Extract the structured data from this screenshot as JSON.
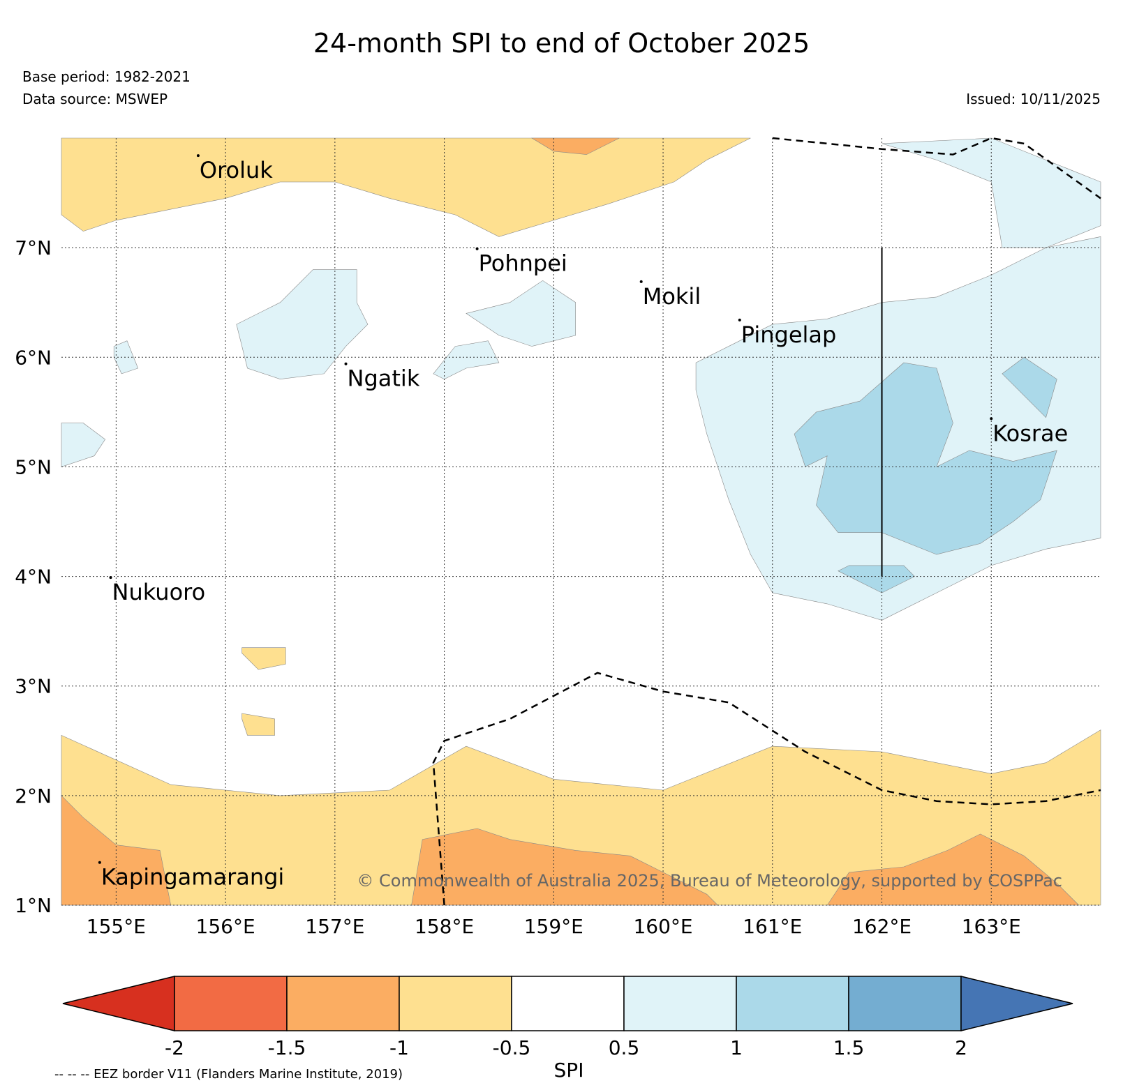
{
  "title": "24-month SPI to end of October 2025",
  "base_period": "Base period: 1982-2021",
  "data_source": "Data source: MSWEP",
  "issued": "Issued: 10/11/2025",
  "copyright": "© Commonwealth of Australia 2025, Bureau of Meteorology, supported by COSPPac",
  "footnote": "-- -- -- EEZ border V11 (Flanders Marine Institute, 2019)",
  "map": {
    "lon_range": [
      154.5,
      164.0
    ],
    "lat_range": [
      1.0,
      8.0
    ],
    "lon_ticks": [
      {
        "value": 155,
        "label": "155°E"
      },
      {
        "value": 156,
        "label": "156°E"
      },
      {
        "value": 157,
        "label": "157°E"
      },
      {
        "value": 158,
        "label": "158°E"
      },
      {
        "value": 159,
        "label": "159°E"
      },
      {
        "value": 160,
        "label": "160°E"
      },
      {
        "value": 161,
        "label": "161°E"
      },
      {
        "value": 162,
        "label": "162°E"
      },
      {
        "value": 163,
        "label": "163°E"
      }
    ],
    "lat_ticks": [
      {
        "value": 1,
        "label": "1°N"
      },
      {
        "value": 2,
        "label": "2°N"
      },
      {
        "value": 3,
        "label": "3°N"
      },
      {
        "value": 4,
        "label": "4°N"
      },
      {
        "value": 5,
        "label": "5°N"
      },
      {
        "value": 6,
        "label": "6°N"
      },
      {
        "value": 7,
        "label": "7°N"
      }
    ],
    "places": [
      {
        "name": "Oroluk",
        "lon": 155.75,
        "lat": 7.7
      },
      {
        "name": "Pohnpei",
        "lon": 158.3,
        "lat": 6.85
      },
      {
        "name": "Mokil",
        "lon": 159.8,
        "lat": 6.55
      },
      {
        "name": "Pingelap",
        "lon": 160.7,
        "lat": 6.2
      },
      {
        "name": "Ngatik",
        "lon": 157.1,
        "lat": 5.8
      },
      {
        "name": "Kosrae",
        "lon": 163.0,
        "lat": 5.3
      },
      {
        "name": "Nukuoro",
        "lon": 154.95,
        "lat": 3.85
      },
      {
        "name": "Kapingamarangi",
        "lon": 154.85,
        "lat": 1.25
      }
    ],
    "eez_south": [
      [
        158.0,
        1.0
      ],
      [
        157.9,
        2.3
      ],
      [
        158.0,
        2.5
      ],
      [
        158.6,
        2.7
      ],
      [
        159.4,
        3.12
      ],
      [
        160.0,
        2.95
      ],
      [
        160.6,
        2.85
      ],
      [
        161.3,
        2.4
      ],
      [
        162.0,
        2.05
      ],
      [
        162.5,
        1.95
      ],
      [
        163.0,
        1.92
      ],
      [
        163.5,
        1.95
      ],
      [
        164.0,
        2.05
      ]
    ],
    "eez_north": [
      [
        161.0,
        8.0
      ],
      [
        162.0,
        7.9
      ],
      [
        162.65,
        7.85
      ],
      [
        163.0,
        8.0
      ],
      [
        163.3,
        7.95
      ],
      [
        164.0,
        7.45
      ]
    ],
    "boundary_line": [
      [
        162.0,
        7.0
      ],
      [
        162.0,
        4.0
      ]
    ],
    "colors": {
      "lt_neg2": "#d7301f",
      "neg2_neg15": "#f26b44",
      "neg15_neg1": "#fbad62",
      "neg1_neg05": "#fee090",
      "neutral": "#ffffff",
      "p05_1": "#e0f3f8",
      "p1_15": "#abd9e9",
      "p15_2": "#74add1",
      "gt2": "#4575b4"
    },
    "regions": [
      {
        "color": "neg1_neg05",
        "coords": [
          [
            154.5,
            8.0
          ],
          [
            160.8,
            8.0
          ],
          [
            160.4,
            7.8
          ],
          [
            160.1,
            7.6
          ],
          [
            159.5,
            7.4
          ],
          [
            159.0,
            7.25
          ],
          [
            158.5,
            7.1
          ],
          [
            158.1,
            7.3
          ],
          [
            157.5,
            7.45
          ],
          [
            157.0,
            7.6
          ],
          [
            156.5,
            7.6
          ],
          [
            156.0,
            7.45
          ],
          [
            155.5,
            7.35
          ],
          [
            155.0,
            7.25
          ],
          [
            154.7,
            7.15
          ],
          [
            154.5,
            7.3
          ]
        ]
      },
      {
        "color": "neg15_neg1",
        "coords": [
          [
            158.8,
            8.0
          ],
          [
            159.6,
            8.0
          ],
          [
            159.3,
            7.85
          ],
          [
            159.0,
            7.88
          ]
        ]
      },
      {
        "color": "neg1_neg05",
        "coords": [
          [
            154.5,
            2.55
          ],
          [
            155.5,
            2.1
          ],
          [
            156.5,
            2.0
          ],
          [
            157.5,
            2.05
          ],
          [
            158.2,
            2.45
          ],
          [
            159.0,
            2.15
          ],
          [
            160.0,
            2.05
          ],
          [
            161.0,
            2.45
          ],
          [
            162.0,
            2.4
          ],
          [
            163.0,
            2.2
          ],
          [
            163.5,
            2.3
          ],
          [
            164.0,
            2.6
          ],
          [
            164.0,
            1.0
          ],
          [
            154.5,
            1.0
          ]
        ]
      },
      {
        "color": "neg15_neg1",
        "coords": [
          [
            154.5,
            2.0
          ],
          [
            154.7,
            1.8
          ],
          [
            155.0,
            1.55
          ],
          [
            155.4,
            1.5
          ],
          [
            155.5,
            1.0
          ],
          [
            154.5,
            1.0
          ]
        ]
      },
      {
        "color": "neg15_neg1",
        "coords": [
          [
            157.7,
            1.0
          ],
          [
            157.8,
            1.6
          ],
          [
            158.3,
            1.7
          ],
          [
            158.6,
            1.6
          ],
          [
            159.2,
            1.5
          ],
          [
            159.7,
            1.45
          ],
          [
            160.0,
            1.3
          ],
          [
            160.4,
            1.1
          ],
          [
            160.5,
            1.0
          ]
        ]
      },
      {
        "color": "neg15_neg1",
        "coords": [
          [
            161.5,
            1.0
          ],
          [
            161.7,
            1.3
          ],
          [
            162.2,
            1.35
          ],
          [
            162.6,
            1.5
          ],
          [
            162.9,
            1.65
          ],
          [
            163.3,
            1.45
          ],
          [
            163.6,
            1.2
          ],
          [
            163.8,
            1.0
          ]
        ]
      },
      {
        "color": "neg1_neg05",
        "coords": [
          [
            156.15,
            3.35
          ],
          [
            156.55,
            3.35
          ],
          [
            156.55,
            3.2
          ],
          [
            156.3,
            3.15
          ],
          [
            156.15,
            3.3
          ]
        ]
      },
      {
        "color": "neg1_neg05",
        "coords": [
          [
            156.15,
            2.75
          ],
          [
            156.45,
            2.7
          ],
          [
            156.45,
            2.55
          ],
          [
            156.2,
            2.55
          ],
          [
            156.15,
            2.7
          ]
        ]
      },
      {
        "color": "p05_1",
        "coords": [
          [
            160.3,
            5.95
          ],
          [
            160.7,
            6.15
          ],
          [
            161.0,
            6.3
          ],
          [
            161.5,
            6.35
          ],
          [
            162.0,
            6.5
          ],
          [
            162.5,
            6.55
          ],
          [
            163.0,
            6.75
          ],
          [
            163.5,
            7.0
          ],
          [
            164.0,
            7.1
          ],
          [
            164.0,
            4.35
          ],
          [
            163.5,
            4.25
          ],
          [
            163.0,
            4.1
          ],
          [
            162.5,
            3.85
          ],
          [
            162.0,
            3.6
          ],
          [
            161.5,
            3.75
          ],
          [
            161.0,
            3.85
          ],
          [
            160.8,
            4.2
          ],
          [
            160.6,
            4.7
          ],
          [
            160.4,
            5.3
          ],
          [
            160.3,
            5.7
          ]
        ]
      },
      {
        "color": "p05_1",
        "coords": [
          [
            162.0,
            7.95
          ],
          [
            163.0,
            8.0
          ],
          [
            164.0,
            7.6
          ],
          [
            164.0,
            7.2
          ],
          [
            163.5,
            7.0
          ],
          [
            163.1,
            7.0
          ],
          [
            163.0,
            7.6
          ],
          [
            162.5,
            7.8
          ]
        ]
      },
      {
        "color": "p1_15",
        "coords": [
          [
            161.2,
            5.3
          ],
          [
            161.4,
            5.5
          ],
          [
            161.8,
            5.6
          ],
          [
            162.2,
            5.95
          ],
          [
            162.5,
            5.9
          ],
          [
            162.65,
            5.4
          ],
          [
            162.5,
            5.0
          ],
          [
            162.8,
            5.15
          ],
          [
            163.2,
            5.05
          ],
          [
            163.6,
            5.15
          ],
          [
            163.45,
            4.7
          ],
          [
            163.2,
            4.5
          ],
          [
            162.9,
            4.3
          ],
          [
            162.5,
            4.2
          ],
          [
            162.0,
            4.4
          ],
          [
            161.6,
            4.4
          ],
          [
            161.4,
            4.65
          ],
          [
            161.5,
            5.1
          ],
          [
            161.3,
            5.0
          ]
        ]
      },
      {
        "color": "p1_15",
        "coords": [
          [
            163.1,
            5.85
          ],
          [
            163.3,
            6.0
          ],
          [
            163.6,
            5.8
          ],
          [
            163.5,
            5.45
          ],
          [
            163.2,
            5.75
          ]
        ]
      },
      {
        "color": "p1_15",
        "coords": [
          [
            161.6,
            4.05
          ],
          [
            162.0,
            3.85
          ],
          [
            162.3,
            4.0
          ],
          [
            162.2,
            4.1
          ],
          [
            161.7,
            4.1
          ]
        ]
      },
      {
        "color": "p05_1",
        "coords": [
          [
            156.1,
            6.3
          ],
          [
            156.5,
            6.5
          ],
          [
            156.8,
            6.8
          ],
          [
            157.2,
            6.8
          ],
          [
            157.2,
            6.5
          ],
          [
            157.3,
            6.3
          ],
          [
            157.1,
            6.1
          ],
          [
            156.9,
            5.85
          ],
          [
            156.5,
            5.8
          ],
          [
            156.2,
            5.9
          ]
        ]
      },
      {
        "color": "p05_1",
        "coords": [
          [
            158.2,
            6.4
          ],
          [
            158.6,
            6.5
          ],
          [
            158.9,
            6.7
          ],
          [
            159.2,
            6.5
          ],
          [
            159.2,
            6.2
          ],
          [
            158.8,
            6.1
          ],
          [
            158.5,
            6.2
          ]
        ]
      },
      {
        "color": "p05_1",
        "coords": [
          [
            157.9,
            5.85
          ],
          [
            158.1,
            6.1
          ],
          [
            158.4,
            6.15
          ],
          [
            158.5,
            5.95
          ],
          [
            158.2,
            5.9
          ],
          [
            158.0,
            5.8
          ]
        ]
      },
      {
        "color": "p05_1",
        "coords": [
          [
            154.5,
            5.4
          ],
          [
            154.7,
            5.4
          ],
          [
            154.9,
            5.25
          ],
          [
            154.8,
            5.1
          ],
          [
            154.5,
            5.0
          ]
        ]
      },
      {
        "color": "p05_1",
        "coords": [
          [
            154.98,
            6.1
          ],
          [
            155.1,
            6.15
          ],
          [
            155.2,
            5.9
          ],
          [
            155.05,
            5.85
          ],
          [
            154.98,
            6.0
          ]
        ]
      }
    ]
  }
}
